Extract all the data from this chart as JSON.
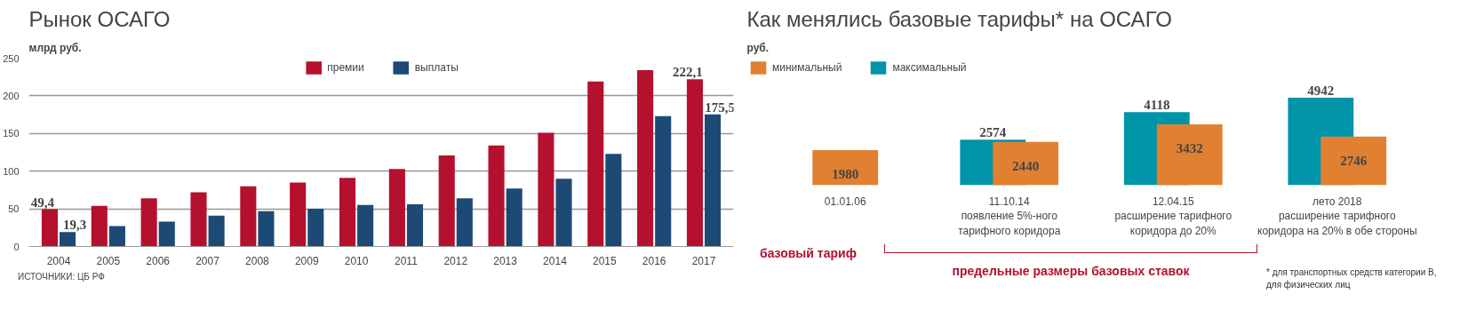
{
  "chart_data": [
    {
      "type": "bar",
      "title": "Рынок ОСАГО",
      "ylabel": "млрд руб.",
      "categories": [
        "2004",
        "2005",
        "2006",
        "2007",
        "2008",
        "2009",
        "2010",
        "2011",
        "2012",
        "2013",
        "2014",
        "2015",
        "2016",
        "2017"
      ],
      "series": [
        {
          "name": "премии",
          "color": "#b5102e",
          "values": [
            49.4,
            54,
            64,
            72,
            80,
            85,
            91,
            103,
            121,
            134,
            151,
            219,
            234,
            222.1
          ],
          "value_labels": [
            "49,4",
            null,
            null,
            null,
            null,
            null,
            null,
            null,
            null,
            null,
            null,
            null,
            null,
            "222,1"
          ]
        },
        {
          "name": "выплаты",
          "color": "#1c4a74",
          "values": [
            19.3,
            27,
            33,
            41,
            47,
            50,
            55,
            56,
            64,
            77,
            90,
            123,
            173,
            175.5
          ],
          "value_labels": [
            "19,3",
            null,
            null,
            null,
            null,
            null,
            null,
            null,
            null,
            null,
            null,
            null,
            null,
            "175,5"
          ]
        }
      ],
      "ylim": [
        0,
        250
      ],
      "yticks": [
        0,
        50,
        100,
        150,
        200,
        250
      ],
      "grid": "y",
      "legend": "top",
      "annotations": [
        "ИСТОЧНИКИ: ЦБ РФ"
      ]
    },
    {
      "type": "bar",
      "title": "Как менялись базовые тарифы* на ОСАГО",
      "ylabel": "руб.",
      "categories": [
        "01.01.06",
        "11.10.14\nпоявление 5%-ного\nтарифного коридора",
        "12.04.15\nрасширение тарифного\nкоридора до 20%",
        "лето 2018\nрасширение тарифного\nкоридора на 20% в обе стороны"
      ],
      "series": [
        {
          "name": "максимальный",
          "color": "#0094a8",
          "values": [
            null,
            2574,
            4118,
            4942
          ]
        },
        {
          "name": "минимальный",
          "color": "#e08030",
          "values": [
            1980,
            2440,
            3432,
            2746
          ]
        }
      ],
      "data_labels": true,
      "tick_labels": "x",
      "grid": false,
      "legend": "top left",
      "annotations": [
        "базовый тариф",
        "предельные размеры базовых ставок",
        "* для транспортных средств категории В, для физических лиц"
      ]
    }
  ]
}
